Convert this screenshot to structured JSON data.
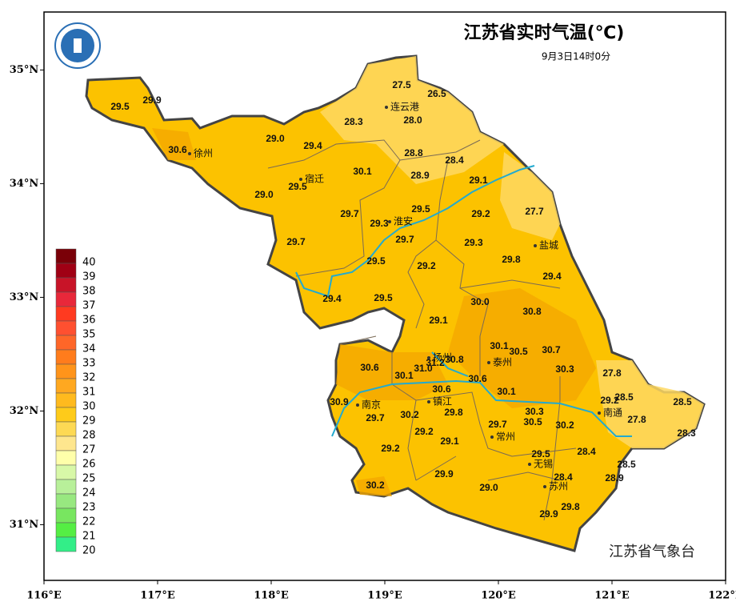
{
  "header": {
    "title": "江苏省实时气温(℃)",
    "time": "9月3日14时0分",
    "agency": "江苏省气象台"
  },
  "axes": {
    "xlim": [
      116,
      122
    ],
    "ylim": [
      30.51,
      35.51
    ],
    "xticks": [
      {
        "value": 116,
        "label": "116°E"
      },
      {
        "value": 117,
        "label": "117°E"
      },
      {
        "value": 118,
        "label": "118°E"
      },
      {
        "value": 119,
        "label": "119°E"
      },
      {
        "value": 120,
        "label": "120°E"
      },
      {
        "value": 121,
        "label": "121°E"
      },
      {
        "value": 122,
        "label": "122°E"
      }
    ],
    "yticks": [
      {
        "value": 31,
        "label": "31°N"
      },
      {
        "value": 32,
        "label": "32°N"
      },
      {
        "value": 33,
        "label": "33°N"
      },
      {
        "value": 34,
        "label": "34°N"
      },
      {
        "value": 35,
        "label": "35°N"
      }
    ]
  },
  "legend": {
    "entries": [
      {
        "value": 40,
        "color": "#7a0008"
      },
      {
        "value": 39,
        "color": "#a00014"
      },
      {
        "value": 38,
        "color": "#c81428"
      },
      {
        "value": 37,
        "color": "#e8283a"
      },
      {
        "value": 36,
        "color": "#ff3a20"
      },
      {
        "value": 35,
        "color": "#ff5030"
      },
      {
        "value": 34,
        "color": "#ff6628"
      },
      {
        "value": 33,
        "color": "#ff7c1c"
      },
      {
        "value": 32,
        "color": "#ff941a"
      },
      {
        "value": 31,
        "color": "#ffa820"
      },
      {
        "value": 30,
        "color": "#ffba1e"
      },
      {
        "value": 29,
        "color": "#fecb1a"
      },
      {
        "value": 28,
        "color": "#fdd954"
      },
      {
        "value": 27,
        "color": "#fee68e"
      },
      {
        "value": 26,
        "color": "#ffffaa"
      },
      {
        "value": 25,
        "color": "#d8f8a8"
      },
      {
        "value": 24,
        "color": "#b8f09a"
      },
      {
        "value": 23,
        "color": "#98e880"
      },
      {
        "value": 22,
        "color": "#78e660"
      },
      {
        "value": 21,
        "color": "#55ee44"
      },
      {
        "value": 20,
        "color": "#33ee88"
      }
    ]
  },
  "stations": [
    "29.5",
    "29.9",
    "30.6",
    "29.0",
    "29.4",
    "29.5",
    "29.0",
    "30.1",
    "27.5",
    "26.5",
    "28.3",
    "28.0",
    "28.8",
    "28.9",
    "28.4",
    "29.1",
    "29.7",
    "29.3",
    "29.5",
    "29.7",
    "29.2",
    "27.7",
    "29.7",
    "29.3",
    "29.5",
    "29.2",
    "29.8",
    "29.4",
    "29.4",
    "29.5",
    "30.0",
    "30.8",
    "29.1",
    "30.1",
    "30.5",
    "30.7",
    "31.2",
    "30.8",
    "31.0",
    "30.6",
    "30.1",
    "30.3",
    "27.8",
    "30.6",
    "30.6",
    "30.1",
    "29.2",
    "28.5",
    "28.5",
    "30.9",
    "29.7",
    "30.2",
    "29.8",
    "29.7",
    "30.3",
    "30.5",
    "30.2",
    "27.8",
    "28.3",
    "29.2",
    "29.1",
    "29.2",
    "29.5",
    "28.4",
    "28.5",
    "28.4",
    "28.9",
    "29.9",
    "29.0",
    "30.2",
    "29.8",
    "29.9"
  ],
  "cities": [
    "连云港",
    "徐州",
    "宿迁",
    "淮安",
    "盐城",
    "扬州",
    "泰州",
    "南京",
    "镇江",
    "南通",
    "常州",
    "无锡",
    "苏州"
  ]
}
